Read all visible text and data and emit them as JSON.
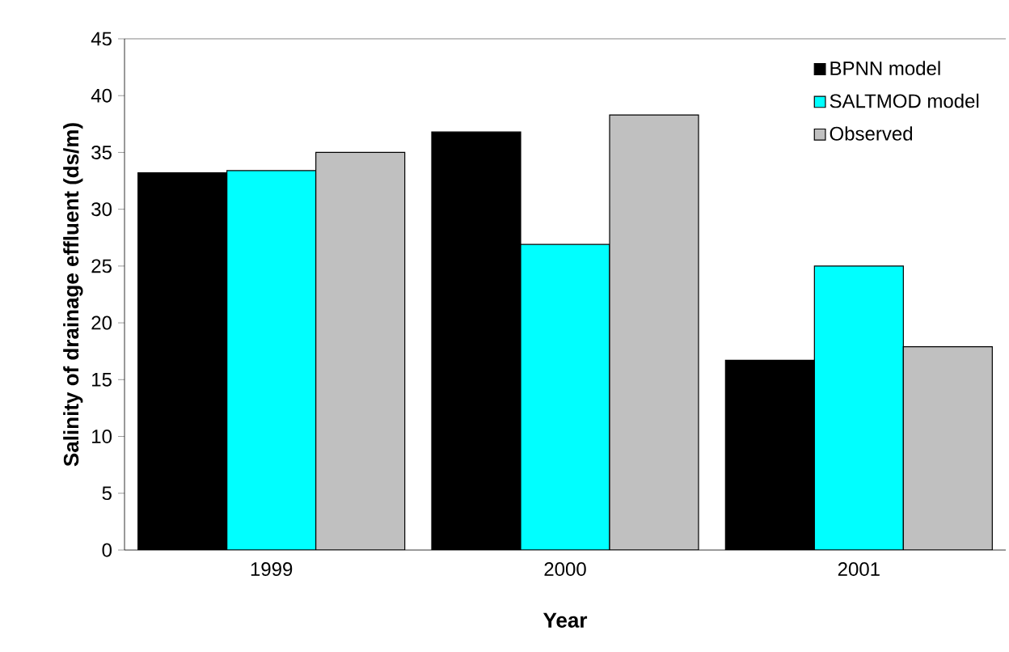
{
  "chart_data": {
    "type": "bar",
    "xlabel": "Year",
    "ylabel": "Salinity of drainage effluent (ds/m)",
    "categories": [
      "1999",
      "2000",
      "2001"
    ],
    "series": [
      {
        "name": "BPNN model",
        "color": "#000000",
        "values": [
          33.2,
          36.8,
          16.7
        ]
      },
      {
        "name": "SALTMOD model",
        "color": "#00ffff",
        "values": [
          33.4,
          26.9,
          25.0
        ]
      },
      {
        "name": "Observed",
        "color": "#c0c0c0",
        "values": [
          35.0,
          38.3,
          17.9
        ]
      }
    ],
    "ylim": [
      0,
      45
    ],
    "yticks": [
      0,
      5,
      10,
      15,
      20,
      25,
      30,
      35,
      40,
      45
    ],
    "grid": false,
    "legend": "top right"
  }
}
